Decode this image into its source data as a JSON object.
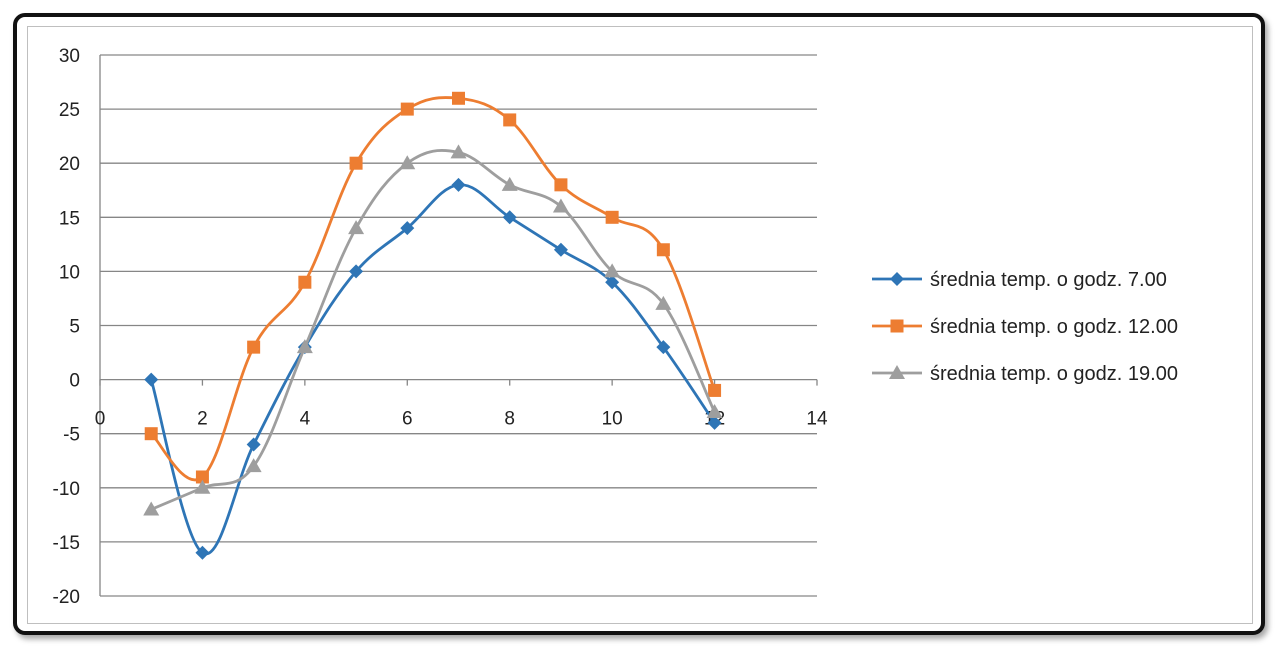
{
  "chart_data": {
    "type": "line",
    "title": "",
    "xlabel": "",
    "ylabel": "",
    "xlim": [
      0,
      14
    ],
    "ylim": [
      -20,
      30
    ],
    "x_ticks": [
      "0",
      "2",
      "4",
      "6",
      "8",
      "10",
      "12",
      "14"
    ],
    "y_ticks": [
      "30",
      "25",
      "20",
      "15",
      "10",
      "5",
      "0",
      "-5",
      "-10",
      "-15",
      "-20"
    ],
    "grid": "horizontal",
    "legend_position": "right",
    "smooth": true,
    "x": [
      1,
      2,
      3,
      4,
      5,
      6,
      7,
      8,
      9,
      10,
      11,
      12
    ],
    "series": [
      {
        "name": "średnia temp. o godz. 7.00",
        "color": "#2E75B6",
        "marker": "diamond",
        "values": [
          0,
          -16,
          -6,
          3,
          10,
          14,
          18,
          15,
          12,
          9,
          3,
          -4
        ]
      },
      {
        "name": "średnia temp. o godz. 12.00",
        "color": "#ED7D31",
        "marker": "square",
        "values": [
          -5,
          -9,
          3,
          9,
          20,
          25,
          26,
          24,
          18,
          15,
          12,
          -1
        ]
      },
      {
        "name": "średnia temp. o godz. 19.00",
        "color": "#9E9E9E",
        "marker": "triangle",
        "values": [
          -12,
          -10,
          -8,
          3,
          14,
          20,
          21,
          18,
          16,
          10,
          7,
          -3
        ]
      }
    ]
  }
}
